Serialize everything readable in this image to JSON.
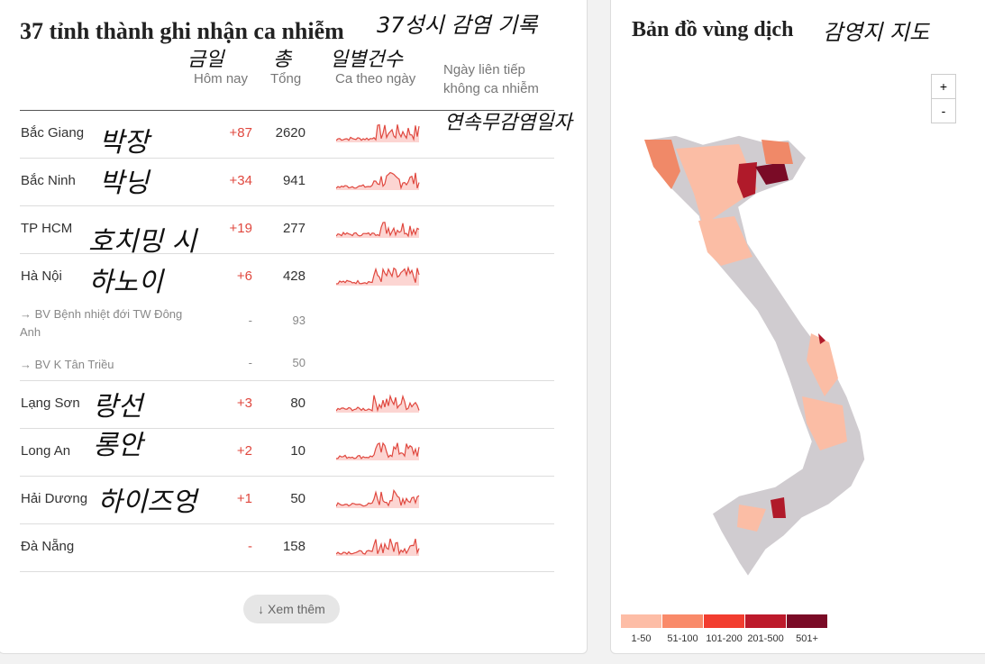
{
  "left_panel": {
    "title": "37 tỉnh thành ghi nhận ca nhiễm",
    "columns": [
      "Hôm nay",
      "Tổng",
      "Ca theo ngày",
      "Ngày liên tiếp không ca nhiễm"
    ],
    "rows": [
      {
        "name": "Bắc Giang",
        "today": "+87",
        "total": 2620
      },
      {
        "name": "Bắc Ninh",
        "today": "+34",
        "total": 941
      },
      {
        "name": "TP HCM",
        "today": "+19",
        "total": 277
      },
      {
        "name": "Hà Nội",
        "today": "+6",
        "total": 428,
        "subrows": [
          {
            "name": "→ BV Bệnh nhiệt đới TW Đông Anh",
            "today": "-",
            "total": 93
          },
          {
            "name": "→ BV K Tân Triều",
            "today": "-",
            "total": 50
          }
        ]
      },
      {
        "name": "Lạng Sơn",
        "today": "+3",
        "total": 80
      },
      {
        "name": "Long An",
        "today": "+2",
        "total": 10
      },
      {
        "name": "Hải Dương",
        "today": "+1",
        "total": 50
      },
      {
        "name": "Đà Nẵng",
        "today": "-",
        "total": 158
      }
    ],
    "more_button": "Xem thêm"
  },
  "right_panel": {
    "title": "Bản đồ vùng dịch",
    "zoom_in": "+",
    "zoom_out": "-",
    "legend": [
      "1-50",
      "51-100",
      "101-200",
      "201-500",
      "501+"
    ]
  },
  "annotations": [
    "37성시 감염 기록",
    "금일",
    "총",
    "일별건수",
    "연속무감염일자",
    "박장",
    "박닝",
    "호치밍 시",
    "하노이",
    "랑선",
    "롱안",
    "하이즈엉",
    "감영지 지도"
  ]
}
